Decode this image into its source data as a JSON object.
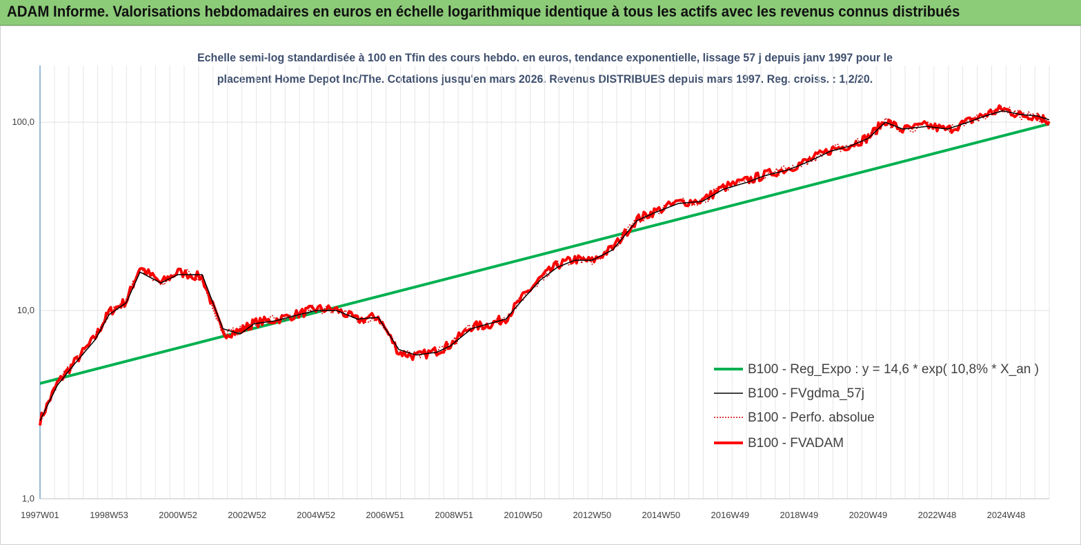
{
  "header": {
    "title": "ADAM Informe. Valorisations hebdomadaires en euros en échelle logarithmique identique à tous les actifs avec les revenus connus distribués"
  },
  "colors": {
    "header_bg": "#8ccb78",
    "reg_expo": "#00b050",
    "fvgdma": "#000000",
    "perfo": "#d00000",
    "fvadam": "#ff0000"
  },
  "chart_data": {
    "type": "line",
    "title": "Echelle semi-log standardisée à 100 en Tfin des cours hebdo. en euros, tendance exponentielle, lissage 57 j depuis janv 1997 pour le placement Home Depot Inc/The. Cotations jusqu'en mars 2026. Revenus DISTRIBUES depuis mars 1997. Reg. croiss. : 1,2/20.",
    "title_lines": [
      "Echelle semi-log standardisée à 100 en Tfin des cours hebdo. en euros, tendance exponentielle, lissage 57 j depuis janv 1997 pour le",
      "placement Home Depot Inc/The. Cotations jusqu'en mars 2026. Revenus DISTRIBUES depuis mars 1997. Reg. croiss. : 1,2/20."
    ],
    "y_scale": "log",
    "ylim": [
      1,
      200
    ],
    "xlim": [
      1997.0,
      2026.25
    ],
    "y_ticks": [
      {
        "value": 1,
        "label": "1,0"
      },
      {
        "value": 10,
        "label": "10,0"
      },
      {
        "value": 100,
        "label": "100,0"
      }
    ],
    "x_ticks": [
      {
        "value": 1997.0,
        "label": "1997W01"
      },
      {
        "value": 1999.0,
        "label": "1998W53"
      },
      {
        "value": 2001.0,
        "label": "2000W52"
      },
      {
        "value": 2003.0,
        "label": "2002W52"
      },
      {
        "value": 2005.0,
        "label": "2004W52"
      },
      {
        "value": 2007.0,
        "label": "2006W51"
      },
      {
        "value": 2009.0,
        "label": "2008W51"
      },
      {
        "value": 2011.0,
        "label": "2010W50"
      },
      {
        "value": 2013.0,
        "label": "2012W50"
      },
      {
        "value": 2015.0,
        "label": "2014W50"
      },
      {
        "value": 2017.0,
        "label": "2016W49"
      },
      {
        "value": 2019.0,
        "label": "2018W49"
      },
      {
        "value": 2021.0,
        "label": "2020W49"
      },
      {
        "value": 2023.0,
        "label": "2022W48"
      },
      {
        "value": 2025.0,
        "label": "2024W48"
      }
    ],
    "grid": "vertical",
    "legend_position": "bottom-right",
    "series": [
      {
        "name": "B100 - Reg_Expo : y = 14,6 * exp( 10,8% *  X_an )",
        "color": "#00b050",
        "style": "solid-thick",
        "x": [
          1997.0,
          2026.25
        ],
        "y": [
          4.1,
          98
        ]
      },
      {
        "name": "B100 - FVgdma_57j",
        "color": "#000000",
        "style": "solid-thin",
        "x": [
          1997.0,
          1997.5,
          1998.0,
          1998.6,
          1999.0,
          1999.5,
          1999.9,
          2000.5,
          2001.0,
          2001.7,
          2002.3,
          2002.8,
          2003.2,
          2003.8,
          2004.5,
          2005.0,
          2005.6,
          2006.2,
          2006.8,
          2007.4,
          2007.9,
          2008.5,
          2008.9,
          2009.5,
          2010.0,
          2010.5,
          2011.0,
          2011.5,
          2012.0,
          2012.5,
          2013.0,
          2013.6,
          2014.3,
          2014.8,
          2015.5,
          2016.2,
          2016.8,
          2017.5,
          2018.0,
          2018.7,
          2019.3,
          2019.9,
          2020.5,
          2021.0,
          2021.5,
          2022.0,
          2022.7,
          2023.3,
          2023.9,
          2024.4,
          2024.9,
          2025.4,
          2025.9,
          2026.25
        ],
        "y": [
          2.6,
          4.0,
          5.2,
          7.0,
          9.5,
          11.0,
          16.0,
          14.0,
          15.5,
          15.5,
          8.0,
          7.5,
          8.5,
          8.8,
          9.5,
          10.0,
          10.0,
          9.0,
          9.2,
          6.2,
          5.8,
          6.0,
          6.5,
          8.0,
          8.5,
          9.0,
          11.5,
          14.5,
          17.0,
          18.5,
          18.5,
          21.0,
          30.0,
          33.0,
          37.0,
          38.0,
          44.0,
          48.0,
          52.0,
          56.0,
          62.0,
          70.0,
          75.0,
          82.0,
          100.0,
          92.0,
          95.0,
          92.0,
          100.0,
          108.0,
          115.0,
          110.0,
          108.0,
          103.0
        ]
      },
      {
        "name": "B100 - Perfo. absolue",
        "color": "#d00000",
        "style": "dotted",
        "x": [
          1997.0,
          1997.5,
          1998.0,
          1998.6,
          1999.0,
          1999.5,
          1999.9,
          2000.5,
          2001.0,
          2001.7,
          2002.3,
          2002.8,
          2003.2,
          2003.8,
          2004.5,
          2005.0,
          2005.6,
          2006.2,
          2006.8,
          2007.4,
          2007.9,
          2008.5,
          2008.9,
          2009.5,
          2010.0,
          2010.5,
          2011.0,
          2011.5,
          2012.0,
          2012.5,
          2013.0,
          2013.6,
          2014.3,
          2014.8,
          2015.5,
          2016.2,
          2016.8,
          2017.5,
          2018.0,
          2018.7,
          2019.3,
          2019.9,
          2020.5,
          2021.0,
          2021.5,
          2022.0,
          2022.7,
          2023.3,
          2023.9,
          2024.4,
          2024.9,
          2025.4,
          2025.9,
          2026.25
        ],
        "y": [
          2.6,
          4.1,
          5.3,
          7.2,
          9.8,
          11.2,
          17.0,
          14.0,
          16.0,
          15.0,
          7.5,
          7.8,
          8.6,
          8.9,
          9.6,
          10.2,
          10.1,
          8.9,
          9.3,
          6.0,
          5.7,
          6.1,
          6.6,
          8.2,
          8.4,
          9.1,
          11.8,
          14.8,
          17.5,
          18.7,
          18.3,
          21.5,
          30.5,
          33.5,
          37.5,
          38.5,
          45.0,
          49.0,
          52.5,
          57.0,
          63.0,
          71.0,
          76.0,
          83.0,
          102.0,
          91.0,
          96.0,
          91.0,
          101.0,
          110.0,
          118.0,
          109.0,
          108.0,
          101.0
        ]
      },
      {
        "name": "B100 - FVADAM",
        "color": "#ff0000",
        "style": "solid-thick",
        "x": [
          1997.0,
          1997.5,
          1998.0,
          1998.6,
          1999.0,
          1999.5,
          1999.9,
          2000.5,
          2001.0,
          2001.7,
          2002.3,
          2002.8,
          2003.2,
          2003.8,
          2004.5,
          2005.0,
          2005.6,
          2006.2,
          2006.8,
          2007.4,
          2007.9,
          2008.5,
          2008.9,
          2009.5,
          2010.0,
          2010.5,
          2011.0,
          2011.5,
          2012.0,
          2012.5,
          2013.0,
          2013.6,
          2014.3,
          2014.8,
          2015.5,
          2016.2,
          2016.8,
          2017.5,
          2018.0,
          2018.7,
          2019.3,
          2019.9,
          2020.5,
          2021.0,
          2021.5,
          2022.0,
          2022.7,
          2023.3,
          2023.9,
          2024.4,
          2024.9,
          2025.4,
          2025.9,
          2026.25
        ],
        "y": [
          2.6,
          4.1,
          5.3,
          7.2,
          9.8,
          11.2,
          17.0,
          14.0,
          16.0,
          15.0,
          7.5,
          7.8,
          8.6,
          8.9,
          9.6,
          10.2,
          10.1,
          8.9,
          9.3,
          6.0,
          5.7,
          6.1,
          6.6,
          8.2,
          8.4,
          9.1,
          11.8,
          14.8,
          17.5,
          18.7,
          18.3,
          21.5,
          30.5,
          33.5,
          37.5,
          38.5,
          45.0,
          49.0,
          52.5,
          57.0,
          63.0,
          71.0,
          76.0,
          83.0,
          102.0,
          91.0,
          96.0,
          91.0,
          101.0,
          110.0,
          118.0,
          109.0,
          108.0,
          101.0
        ]
      }
    ]
  }
}
